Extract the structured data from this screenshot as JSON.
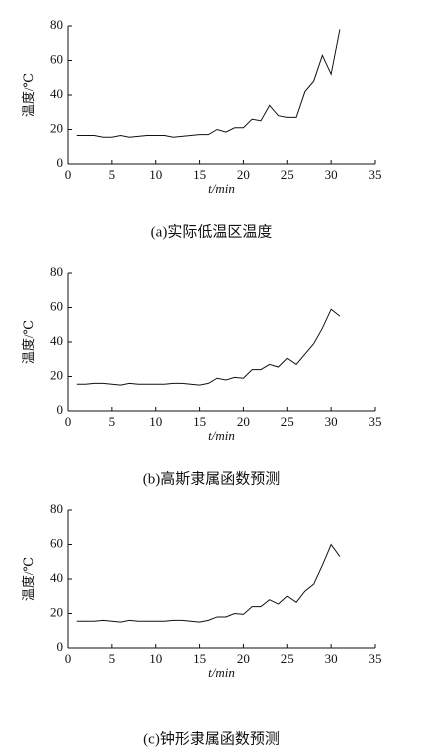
{
  "chart_data": [
    {
      "type": "line",
      "caption": "(a)实际低温区温度",
      "xlabel": "t/min",
      "ylabel": "温度/℃",
      "xlim": [
        0,
        35
      ],
      "xticks": [
        0,
        5,
        10,
        15,
        20,
        25,
        30,
        35
      ],
      "ylim": [
        0,
        80
      ],
      "yticks": [
        0,
        20,
        40,
        60,
        80
      ],
      "grid": false,
      "x": [
        1,
        2,
        3,
        4,
        5,
        6,
        7,
        8,
        9,
        10,
        11,
        12,
        13,
        14,
        15,
        16,
        17,
        18,
        19,
        20,
        21,
        22,
        23,
        24,
        25,
        26,
        27,
        28,
        29,
        30,
        31
      ],
      "series": [
        {
          "name": "实际低温区温度",
          "color": "#111111",
          "values": [
            16.5,
            16.5,
            16.5,
            15.5,
            15.5,
            16.5,
            15.5,
            16,
            16.5,
            16.5,
            16.5,
            15.5,
            16,
            16.5,
            17,
            17,
            20,
            18.5,
            21,
            21,
            26,
            25,
            34,
            28,
            27,
            27,
            42,
            48,
            63,
            52,
            78
          ]
        }
      ]
    },
    {
      "type": "line",
      "caption": "(b)高斯隶属函数预测",
      "xlabel": "t/min",
      "ylabel": "温度/℃",
      "xlim": [
        0,
        35
      ],
      "xticks": [
        0,
        5,
        10,
        15,
        20,
        25,
        30,
        35
      ],
      "ylim": [
        0,
        80
      ],
      "yticks": [
        0,
        20,
        40,
        60,
        80
      ],
      "grid": false,
      "x": [
        1,
        2,
        3,
        4,
        5,
        6,
        7,
        8,
        9,
        10,
        11,
        12,
        13,
        14,
        15,
        16,
        17,
        18,
        19,
        20,
        21,
        22,
        23,
        24,
        25,
        26,
        27,
        28,
        29,
        30,
        31
      ],
      "series": [
        {
          "name": "高斯隶属函数预测",
          "color": "#111111",
          "values": [
            15.5,
            15.5,
            16,
            16,
            15.5,
            15,
            16,
            15.5,
            15.5,
            15.5,
            15.5,
            16,
            16,
            15.5,
            15,
            16,
            19,
            18,
            19.5,
            19,
            24,
            24,
            27,
            25.5,
            30.5,
            27,
            33,
            39,
            48,
            59,
            55
          ]
        }
      ]
    },
    {
      "type": "line",
      "caption": "(c)钟形隶属函数预测",
      "xlabel": "t/min",
      "ylabel": "温度/℃",
      "xlim": [
        0,
        35
      ],
      "xticks": [
        0,
        5,
        10,
        15,
        20,
        25,
        30,
        35
      ],
      "ylim": [
        0,
        80
      ],
      "yticks": [
        0,
        20,
        40,
        60,
        80
      ],
      "grid": false,
      "x": [
        1,
        2,
        3,
        4,
        5,
        6,
        7,
        8,
        9,
        10,
        11,
        12,
        13,
        14,
        15,
        16,
        17,
        18,
        19,
        20,
        21,
        22,
        23,
        24,
        25,
        26,
        27,
        28,
        29,
        30,
        31
      ],
      "series": [
        {
          "name": "钟形隶属函数预测",
          "color": "#111111",
          "values": [
            15.5,
            15.5,
            15.5,
            16,
            15.5,
            15,
            16,
            15.5,
            15.5,
            15.5,
            15.5,
            16,
            16,
            15.5,
            15,
            16,
            18,
            18,
            20,
            19.5,
            24,
            24,
            28,
            25.5,
            30,
            26.5,
            33,
            37,
            48,
            60,
            53
          ]
        }
      ]
    }
  ]
}
